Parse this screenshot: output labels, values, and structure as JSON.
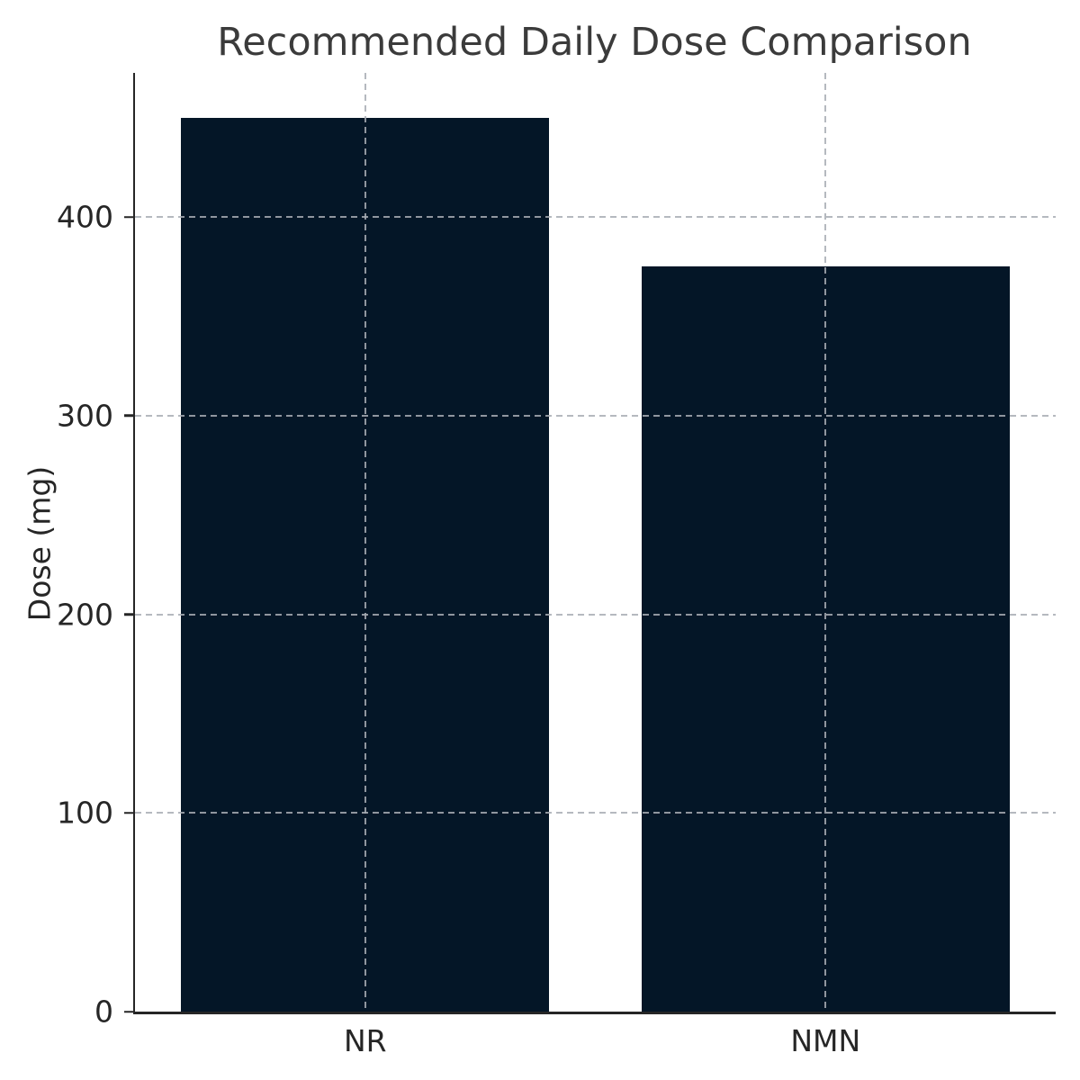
{
  "chart_data": {
    "type": "bar",
    "title": "Recommended Daily Dose Comparison",
    "xlabel": "",
    "ylabel": "Dose (mg)",
    "categories": [
      "NR",
      "NMN"
    ],
    "values": [
      450,
      375
    ],
    "ylim": [
      0,
      472.5
    ],
    "yticks": [
      0,
      100,
      200,
      300,
      400
    ],
    "bar_width_fraction": 0.8,
    "grid": "dashed, drawn over bars, horizontal at y-ticks and vertical at bar centers",
    "legend_position": "none",
    "colors": {
      "bar": "#041627",
      "title_text": "#3b3b3b",
      "tick_text": "#262626",
      "axis_spine": "#262626",
      "gridline": "#a8adb4",
      "background": "#ffffff"
    }
  }
}
